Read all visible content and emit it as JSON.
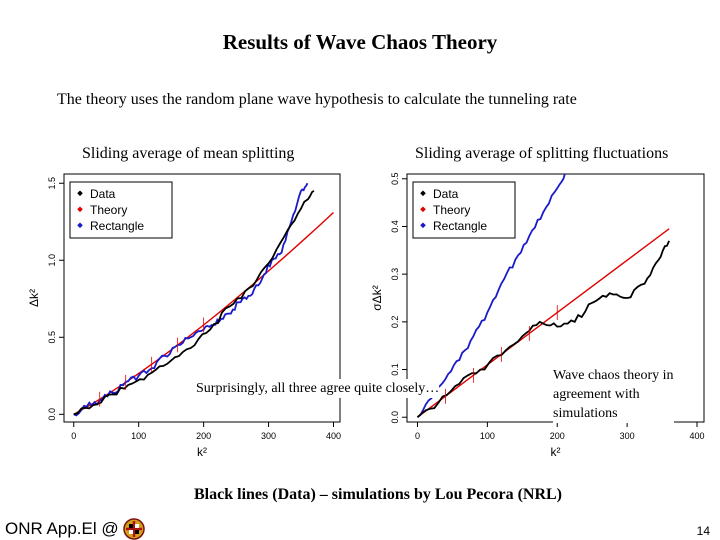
{
  "slide": {
    "title": "Results of Wave Chaos Theory",
    "subtitle": "The theory uses the random plane wave hypothesis to calculate the tunneling rate",
    "left_caption": "Sliding average of mean splitting",
    "right_caption": "Sliding average of splitting fluctuations",
    "note_left": "Surprisingly, all three agree quite closely…",
    "note_right": "Wave chaos theory in\nagreement with\nsimulations",
    "credit": "Black lines (Data) – simulations by Lou Pecora (NRL)",
    "footer_text": "ONR App.El @",
    "page_number": "14"
  },
  "colors": {
    "data": "#000000",
    "theory": "#e00000",
    "rectangle": "#1a1acc"
  },
  "chart_data": [
    {
      "type": "line",
      "title": "Sliding average of mean splitting",
      "xlabel": "k²",
      "ylabel": "Δk²",
      "xlim": [
        -15,
        410
      ],
      "ylim": [
        -0.05,
        1.56
      ],
      "xticks": [
        0,
        100,
        200,
        300,
        400
      ],
      "yticks": [
        0.0,
        0.5,
        1.0,
        1.5
      ],
      "yticklabels": [
        "0.0",
        "0.5",
        "1.0",
        "1.5"
      ],
      "legend": {
        "position": "top-left",
        "entries": [
          "Data",
          "Theory",
          "Rectangle"
        ]
      },
      "series": [
        {
          "name": "Theory",
          "color": "#e00000",
          "x": [
            0,
            25,
            50,
            75,
            100,
            125,
            150,
            175,
            200,
            225,
            250,
            275,
            300,
            325,
            350,
            375,
            400
          ],
          "y": [
            0.0,
            0.059,
            0.124,
            0.193,
            0.265,
            0.34,
            0.418,
            0.498,
            0.58,
            0.665,
            0.752,
            0.84,
            0.931,
            1.023,
            1.117,
            1.213,
            1.31
          ]
        },
        {
          "name": "Rectangle",
          "color": "#1a1acc",
          "x": [
            0,
            20,
            40,
            60,
            80,
            100,
            120,
            140,
            160,
            180,
            200,
            215,
            230,
            245,
            260,
            275,
            290,
            305,
            320,
            335,
            350,
            360
          ],
          "y": [
            0.0,
            0.05,
            0.09,
            0.14,
            0.21,
            0.25,
            0.3,
            0.38,
            0.45,
            0.5,
            0.55,
            0.58,
            0.62,
            0.68,
            0.75,
            0.78,
            0.88,
            1.0,
            1.05,
            1.25,
            1.45,
            1.5
          ]
        },
        {
          "name": "Data",
          "color": "#000000",
          "x": [
            0,
            30,
            60,
            90,
            120,
            150,
            180,
            210,
            240,
            270,
            300,
            330,
            355,
            370
          ],
          "y": [
            0.0,
            0.06,
            0.13,
            0.2,
            0.27,
            0.35,
            0.43,
            0.55,
            0.7,
            0.82,
            0.98,
            1.2,
            1.38,
            1.45
          ]
        }
      ]
    },
    {
      "type": "line",
      "title": "Sliding average of splitting fluctuations",
      "xlabel": "k²",
      "ylabel": "σΔk²",
      "xlim": [
        -15,
        410
      ],
      "ylim": [
        -0.01,
        0.51
      ],
      "xticks": [
        0,
        100,
        200,
        300,
        400
      ],
      "yticks": [
        0.0,
        0.1,
        0.2,
        0.3,
        0.4,
        0.5
      ],
      "yticklabels": [
        "0.0",
        "0.1",
        "0.2",
        "0.3",
        "0.4",
        "0.5"
      ],
      "legend": {
        "position": "top-left",
        "entries": [
          "Data",
          "Theory",
          "Rectangle"
        ]
      },
      "series": [
        {
          "name": "Theory",
          "color": "#e00000",
          "x": [
            0,
            360
          ],
          "y": [
            0.0,
            0.395
          ]
        },
        {
          "name": "Rectangle",
          "color": "#1a1acc",
          "x": [
            0,
            20,
            40,
            60,
            80,
            100,
            120,
            140,
            160,
            180,
            200,
            215
          ],
          "y": [
            0.0,
            0.04,
            0.08,
            0.12,
            0.17,
            0.22,
            0.28,
            0.33,
            0.38,
            0.43,
            0.48,
            0.52
          ]
        },
        {
          "name": "Data",
          "color": "#000000",
          "x": [
            0,
            30,
            60,
            90,
            120,
            150,
            175,
            200,
            225,
            250,
            275,
            300,
            325,
            345,
            360
          ],
          "y": [
            0.0,
            0.03,
            0.07,
            0.1,
            0.13,
            0.17,
            0.2,
            0.19,
            0.2,
            0.24,
            0.26,
            0.25,
            0.28,
            0.33,
            0.37
          ]
        }
      ]
    }
  ]
}
